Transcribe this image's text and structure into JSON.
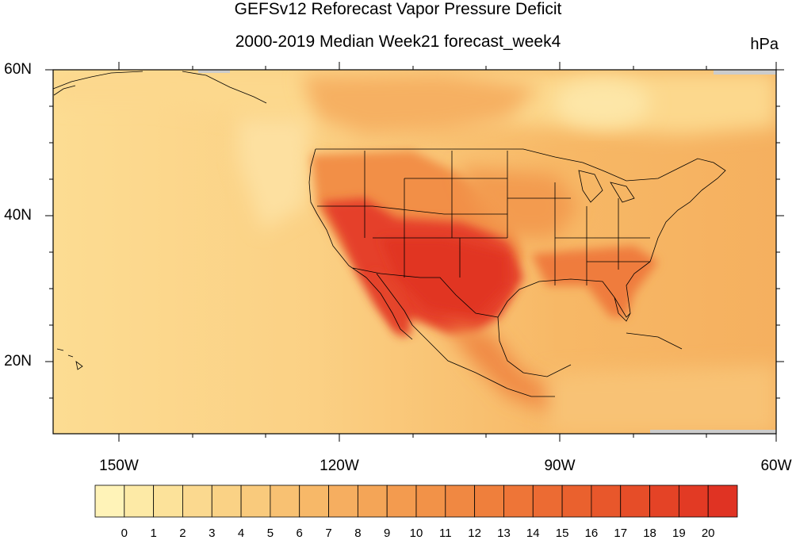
{
  "title": "GEFSv12 Reforecast Vapor Pressure Deficit",
  "subtitle": "2000-2019 Median Week21 forecast_week4",
  "units": "hPa",
  "lat_labels": [
    "60N",
    "40N",
    "20N"
  ],
  "lon_labels": [
    "150W",
    "120W",
    "90W",
    "60W"
  ],
  "colorbar": {
    "labels": [
      "0",
      "1",
      "2",
      "3",
      "4",
      "5",
      "6",
      "7",
      "8",
      "9",
      "10",
      "11",
      "12",
      "13",
      "14",
      "15",
      "16",
      "17",
      "18",
      "19",
      "20"
    ],
    "colors": [
      "#fff3b8",
      "#fdeaa6",
      "#fce29a",
      "#fbd98f",
      "#fad285",
      "#f9ca7c",
      "#f8c172",
      "#f7b868",
      "#f6ae60",
      "#f4a557",
      "#f39b4f",
      "#f29248",
      "#f08842",
      "#ef7f3c",
      "#ee7537",
      "#ec6b33",
      "#ea612e",
      "#e8572b",
      "#e64d28",
      "#e44326",
      "#e23a24",
      "#e03323"
    ]
  },
  "colors": {
    "ocean_pacific": "#fbd486",
    "ocean_atlantic": "#f6b462",
    "land_dry": "#e43a27",
    "missing": "#cccccc"
  }
}
